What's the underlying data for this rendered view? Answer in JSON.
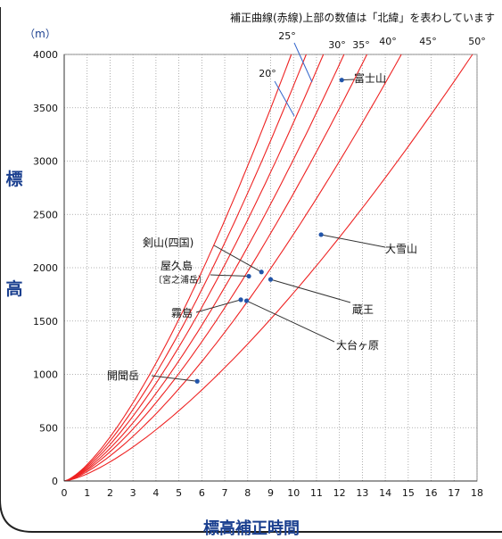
{
  "chart_data": {
    "type": "line",
    "title": "補正曲線(赤線)上部の数値は「北緯」を表わしています",
    "xlabel": "標高補正時間",
    "ylabel": "標高",
    "y_unit": "（m）",
    "xlim": [
      0,
      18
    ],
    "ylim": [
      0,
      4000
    ],
    "x_ticks": [
      "0",
      "1",
      "2",
      "3",
      "4",
      "5",
      "6",
      "7",
      "8",
      "9",
      "10",
      "11",
      "12",
      "13",
      "14",
      "15",
      "16",
      "17",
      "18"
    ],
    "y_ticks": [
      "0",
      "500",
      "1000",
      "1500",
      "2000",
      "2500",
      "3000",
      "3500",
      "4000"
    ],
    "grid": true,
    "colors": {
      "curve": "#ee2222",
      "point": "#2255aa",
      "axis_title": "#1a3f8f",
      "text": "#111111",
      "leader_20": "#3366cc"
    },
    "series": [
      {
        "name": "20°",
        "x_at_4000": 9.9
      },
      {
        "name": "25°",
        "x_at_4000": 10.55
      },
      {
        "name": "30°",
        "x_at_4000": 11.3
      },
      {
        "name": "35°",
        "x_at_4000": 12.2
      },
      {
        "name": "40°",
        "x_at_4000": 13.2
      },
      {
        "name": "45°",
        "x_at_4000": 14.7
      },
      {
        "name": "50°",
        "x_at_4000": 17.8
      }
    ],
    "points": [
      {
        "label": "富士山",
        "x": 12.1,
        "y": 3760,
        "anchor": "right"
      },
      {
        "label": "大雪山",
        "x": 11.2,
        "y": 2310,
        "anchor": "lower-right"
      },
      {
        "label": "剣山(四国)",
        "x": 8.6,
        "y": 1960,
        "anchor": "upper-left"
      },
      {
        "label": "屋久島",
        "sublabel": "〔宮之浦岳〕",
        "x": 8.05,
        "y": 1920,
        "anchor": "left"
      },
      {
        "label": "蔵王",
        "x": 9.0,
        "y": 1890,
        "anchor": "lower-right"
      },
      {
        "label": "霧島",
        "x": 7.7,
        "y": 1700,
        "anchor": "left"
      },
      {
        "label": "大台ヶ原",
        "x": 7.95,
        "y": 1690,
        "anchor": "lower-right"
      },
      {
        "label": "開聞岳",
        "x": 5.8,
        "y": 935,
        "anchor": "left"
      }
    ]
  }
}
